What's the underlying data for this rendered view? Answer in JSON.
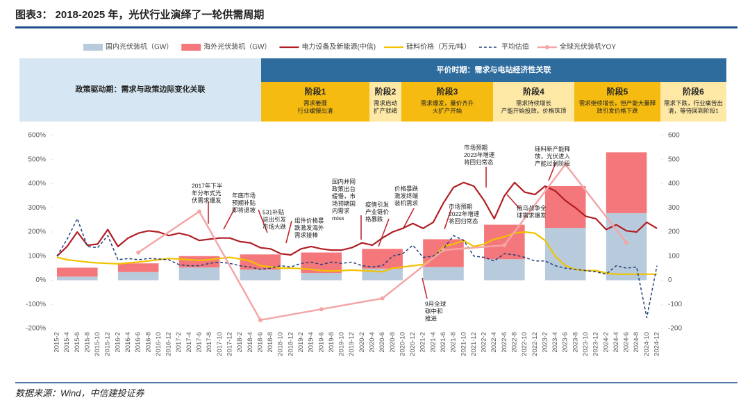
{
  "title": "图表3： 2018-2025 年，光伏行业演绎了一轮供需周期",
  "source": "数据来源：Wind，中信建投证券",
  "bands": {
    "left": "政策驱动期：需求与政策边际变化关联",
    "top": "平价时期：需求与电站经济性关联",
    "stages": [
      {
        "name": "阶段1",
        "desc": [
          "需求萎靡",
          "行业缓慢出清"
        ]
      },
      {
        "name": "阶段2",
        "desc": [
          "需求启动",
          "扩产就绪"
        ]
      },
      {
        "name": "阶段3",
        "desc": [
          "需求爆发，量价齐升",
          "大扩产开始"
        ]
      },
      {
        "name": "阶段4",
        "desc": [
          "需求持续增长",
          "产能开始投放，价格筑顶"
        ]
      },
      {
        "name": "阶段5",
        "desc": [
          "需求继续增长，但产能大量释",
          "放引发价格下跌"
        ]
      },
      {
        "name": "阶段6",
        "desc": [
          "需求下跌，行业痛苦出",
          "清，等待回到阶段1"
        ]
      }
    ]
  },
  "chart_data": {
    "type": "combo",
    "categories": [
      "2015-2",
      "2015-4",
      "2015-6",
      "2015-8",
      "2015-10",
      "2015-12",
      "2016-2",
      "2016-4",
      "2016-6",
      "2016-8",
      "2016-10",
      "2016-12",
      "2017-2",
      "2017-4",
      "2017-6",
      "2017-8",
      "2017-10",
      "2017-12",
      "2018-2",
      "2018-4",
      "2018-6",
      "2018-8",
      "2018-10",
      "2018-12",
      "2019-2",
      "2019-4",
      "2019-6",
      "2019-8",
      "2019-10",
      "2019-12",
      "2020-2",
      "2020-4",
      "2020-6",
      "2020-8",
      "2020-10",
      "2020-12",
      "2021-2",
      "2021-4",
      "2021-6",
      "2021-8",
      "2021-10",
      "2021-12",
      "2022-2",
      "2022-4",
      "2022-6",
      "2022-8",
      "2022-10",
      "2022-12",
      "2023-2",
      "2023-4",
      "2023-6",
      "2023-8",
      "2023-10",
      "2023-12",
      "2024-2",
      "2024-4",
      "2024-6",
      "2024-8",
      "2024-10",
      "2024-12"
    ],
    "ylim": [
      -200,
      600
    ],
    "yticks": [
      {
        "value": -200,
        "label": "-200%"
      },
      {
        "value": -100,
        "label": "-100%"
      },
      {
        "value": 0,
        "label": "0%"
      },
      {
        "value": 100,
        "label": "100%"
      },
      {
        "value": 200,
        "label": "200%"
      },
      {
        "value": 300,
        "label": "300%"
      },
      {
        "value": 400,
        "label": "400%"
      },
      {
        "value": 500,
        "label": "500%"
      },
      {
        "value": 600,
        "label": "600%"
      }
    ],
    "y2lim": [
      -200,
      600
    ],
    "y2ticks": [
      -200,
      -100,
      0,
      100,
      200,
      300,
      400,
      500,
      600
    ],
    "grid": false,
    "series": [
      {
        "name": "国内光伏装机（GW）",
        "type": "bar",
        "axis": "y2",
        "color": "#b7cbdc",
        "values": [
          null,
          null,
          15,
          null,
          null,
          null,
          null,
          null,
          34,
          null,
          null,
          null,
          null,
          null,
          53,
          null,
          null,
          null,
          null,
          null,
          44,
          null,
          null,
          null,
          null,
          null,
          30,
          null,
          null,
          null,
          null,
          null,
          48,
          null,
          null,
          null,
          null,
          null,
          55,
          null,
          null,
          null,
          null,
          null,
          87,
          null,
          null,
          null,
          null,
          null,
          217,
          null,
          null,
          null,
          null,
          null,
          278,
          null,
          null,
          null
        ]
      },
      {
        "name": "海外光伏装机（GW）",
        "type": "bar",
        "axis": "y2",
        "color": "#f4777b",
        "values": [
          null,
          null,
          37,
          null,
          null,
          null,
          null,
          null,
          36,
          null,
          null,
          null,
          null,
          null,
          47,
          null,
          null,
          null,
          null,
          null,
          63,
          null,
          null,
          null,
          null,
          null,
          85,
          null,
          null,
          null,
          null,
          null,
          82,
          null,
          null,
          null,
          null,
          null,
          115,
          null,
          null,
          null,
          null,
          null,
          143,
          null,
          null,
          null,
          null,
          null,
          173,
          null,
          null,
          null,
          null,
          null,
          252,
          null,
          null,
          null
        ]
      },
      {
        "name": "电力设备及新能源(中信)",
        "type": "line",
        "color": "#b01e24",
        "width": 2.2,
        "values": [
          100,
          140,
          200,
          145,
          150,
          210,
          140,
          175,
          195,
          205,
          200,
          185,
          195,
          185,
          165,
          170,
          175,
          175,
          160,
          155,
          135,
          130,
          110,
          105,
          130,
          140,
          130,
          125,
          125,
          135,
          155,
          145,
          175,
          200,
          215,
          235,
          215,
          240,
          320,
          385,
          405,
          390,
          330,
          255,
          350,
          405,
          365,
          355,
          390,
          370,
          330,
          300,
          265,
          255,
          210,
          230,
          205,
          200,
          240,
          215
        ]
      },
      {
        "name": "硅料价格（万元/吨）",
        "type": "line",
        "axis": "y2",
        "color": "#f2c200",
        "width": 2.2,
        "values": [
          95,
          85,
          80,
          75,
          72,
          70,
          68,
          72,
          75,
          80,
          85,
          90,
          88,
          85,
          82,
          85,
          90,
          95,
          88,
          80,
          60,
          55,
          50,
          50,
          48,
          45,
          40,
          38,
          40,
          42,
          40,
          38,
          35,
          50,
          55,
          60,
          65,
          90,
          140,
          150,
          165,
          140,
          150,
          170,
          180,
          195,
          200,
          195,
          165,
          100,
          60,
          45,
          40,
          40,
          30,
          25,
          25,
          25,
          25,
          25
        ]
      },
      {
        "name": "平均估值",
        "type": "line",
        "axis": "y2",
        "color": "#1f3f7a",
        "width": 1.5,
        "dash": true,
        "values": [
          100,
          170,
          255,
          140,
          135,
          185,
          85,
          90,
          85,
          90,
          88,
          85,
          65,
          60,
          60,
          70,
          75,
          70,
          60,
          55,
          45,
          50,
          60,
          55,
          70,
          75,
          65,
          75,
          70,
          75,
          60,
          55,
          60,
          100,
          110,
          145,
          95,
          100,
          130,
          185,
          165,
          100,
          95,
          80,
          110,
          105,
          95,
          80,
          80,
          60,
          50,
          45,
          40,
          35,
          25,
          60,
          50,
          55,
          -155,
          60
        ]
      },
      {
        "name": "全球光伏装机YOY",
        "type": "line",
        "color": "#f4a6a6",
        "width": 2.5,
        "markers": true,
        "connect_gaps": true,
        "values": [
          null,
          null,
          null,
          null,
          null,
          null,
          null,
          null,
          115,
          null,
          null,
          null,
          null,
          null,
          285,
          null,
          null,
          null,
          null,
          null,
          -165,
          null,
          null,
          null,
          null,
          null,
          -120,
          null,
          null,
          null,
          null,
          null,
          -75,
          null,
          null,
          null,
          null,
          null,
          125,
          null,
          null,
          null,
          null,
          null,
          145,
          null,
          null,
          null,
          null,
          null,
          480,
          null,
          null,
          null,
          null,
          null,
          155,
          null,
          null,
          null
        ]
      }
    ],
    "annotations": [
      [
        "2017年下半",
        "年分布式光",
        "伏需求爆发"
      ],
      [
        "年底市场",
        "预期补贴",
        "即将退坡"
      ],
      [
        "531补贴",
        "退出引发",
        "市场大跌"
      ],
      [
        "组件价格暴",
        "跌激发海外",
        "需求接棒"
      ],
      [
        "国内并网",
        "政策出台",
        "缓慢，市",
        "场预期国",
        "内需求",
        "miss"
      ],
      [
        "疫情引发",
        "产业链价",
        "格暴跌"
      ],
      [
        "价格暴跌",
        "激发终端",
        "装机需求"
      ],
      [
        "市场预期",
        "2022年增速",
        "将回归常态"
      ],
      [
        "市场预期",
        "2023年增速",
        "将回归常态"
      ],
      [
        "俄乌战争全",
        "球需求爆发"
      ],
      [
        "硅料新产能释",
        "放，光伏进入",
        "产能过剩阶段"
      ],
      [
        "9月全球",
        "碳中和",
        "推进"
      ]
    ]
  }
}
